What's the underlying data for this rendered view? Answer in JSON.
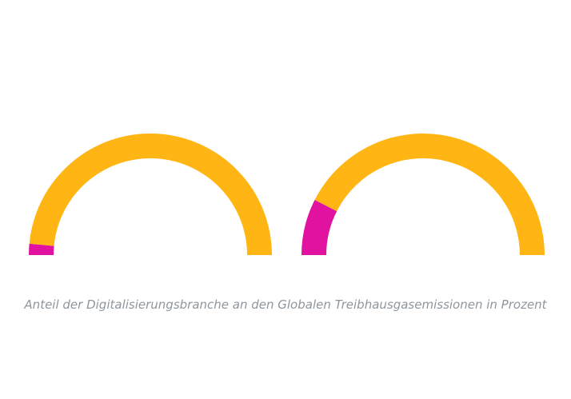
{
  "chart_data": {
    "type": "pie",
    "variant": "semi-donut",
    "caption": "Anteil der Digitalisierungsbranche an den Globalen Treibhausgasemissionen in Prozent",
    "gauges": [
      {
        "values": [
          3,
          97
        ],
        "colors": [
          "#E0129F",
          "#FFB514"
        ]
      },
      {
        "values": [
          15,
          85
        ],
        "colors": [
          "#E0129F",
          "#FFB514"
        ]
      }
    ]
  }
}
